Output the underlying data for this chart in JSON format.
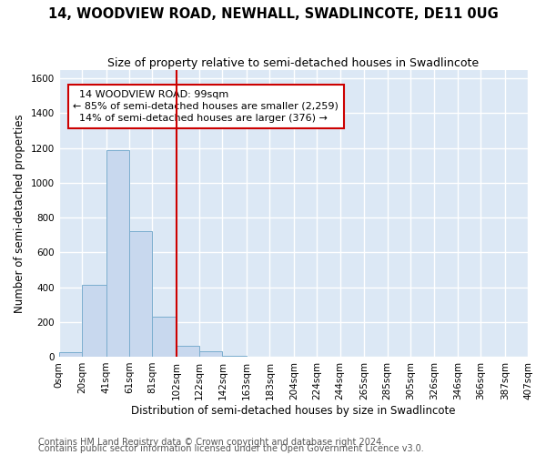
{
  "title": "14, WOODVIEW ROAD, NEWHALL, SWADLINCOTE, DE11 0UG",
  "subtitle": "Size of property relative to semi-detached houses in Swadlincote",
  "xlabel": "Distribution of semi-detached houses by size in Swadlincote",
  "ylabel": "Number of semi-detached properties",
  "footnote1": "Contains HM Land Registry data © Crown copyright and database right 2024.",
  "footnote2": "Contains public sector information licensed under the Open Government Licence v3.0.",
  "annotation_title": "14 WOODVIEW ROAD: 99sqm",
  "annotation_line1": "← 85% of semi-detached houses are smaller (2,259)",
  "annotation_line2": "14% of semi-detached houses are larger (376) →",
  "property_size_sqm": 99,
  "bin_edges": [
    0,
    20,
    41,
    61,
    81,
    102,
    122,
    142,
    163,
    183,
    204,
    224,
    244,
    265,
    285,
    305,
    326,
    346,
    366,
    387,
    407
  ],
  "bin_labels": [
    "0sqm",
    "20sqm",
    "41sqm",
    "61sqm",
    "81sqm",
    "102sqm",
    "122sqm",
    "142sqm",
    "163sqm",
    "183sqm",
    "204sqm",
    "224sqm",
    "244sqm",
    "265sqm",
    "285sqm",
    "305sqm",
    "326sqm",
    "346sqm",
    "366sqm",
    "387sqm",
    "407sqm"
  ],
  "bar_heights": [
    25,
    415,
    1190,
    720,
    230,
    65,
    30,
    5,
    0,
    0,
    0,
    0,
    0,
    0,
    0,
    0,
    0,
    0,
    0,
    0
  ],
  "bar_color": "#c8d8ee",
  "bar_edge_color": "#7aadce",
  "vline_x": 102,
  "vline_color": "#cc0000",
  "ylim": [
    0,
    1650
  ],
  "yticks": [
    0,
    200,
    400,
    600,
    800,
    1000,
    1200,
    1400,
    1600
  ],
  "bg_color": "#dce8f5",
  "grid_color": "#ffffff",
  "annotation_box_color": "#ffffff",
  "annotation_box_edge": "#cc0000",
  "title_fontsize": 10.5,
  "subtitle_fontsize": 9,
  "label_fontsize": 8.5,
  "tick_fontsize": 7.5,
  "annotation_fontsize": 8,
  "footnote_fontsize": 7
}
